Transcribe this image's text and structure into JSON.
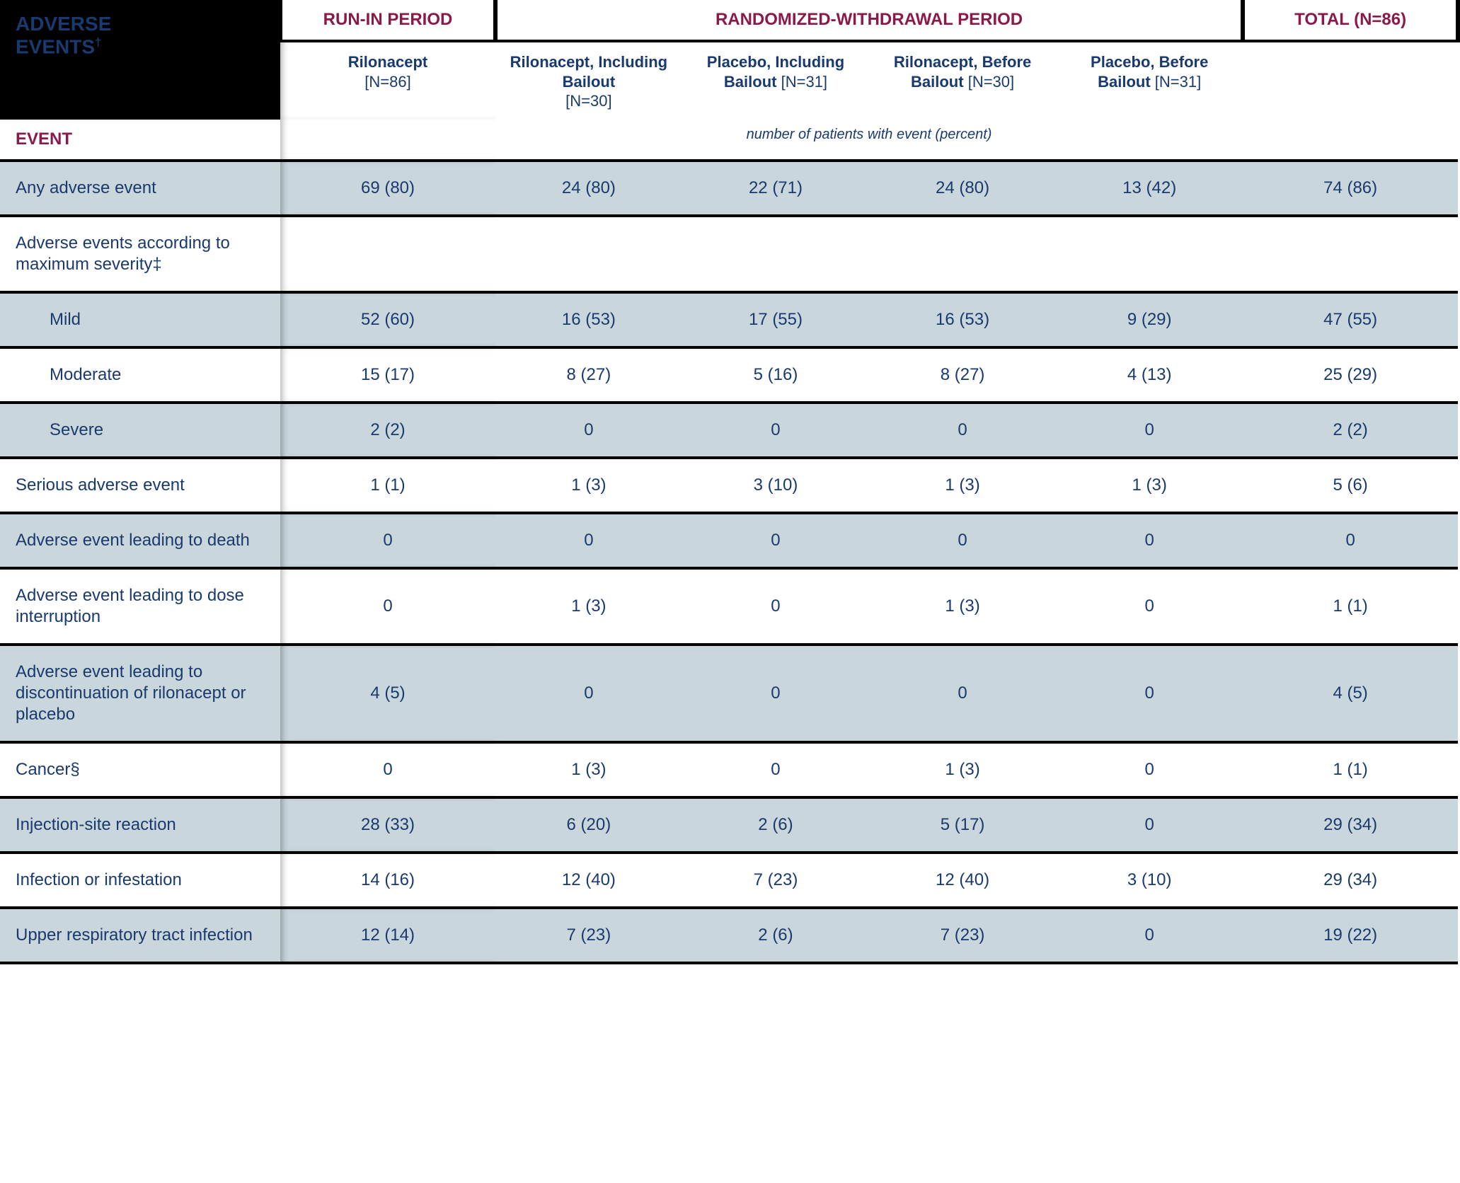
{
  "colors": {
    "text_primary": "#1a3a6e",
    "accent": "#8a1a4a",
    "row_alt_bg": "#c9d6dc",
    "row_plain_bg": "#ffffff",
    "header_black": "#000000",
    "header_white": "#ffffff",
    "rule": "#000000"
  },
  "typography": {
    "title_fontsize": 28,
    "period_fontsize": 24,
    "subheader_fontsize": 22,
    "body_fontsize": 24,
    "caption_fontsize": 20
  },
  "header": {
    "title_line1": "ADVERSE",
    "title_line2": "EVENTS",
    "title_sup": "†",
    "period_runin": "RUN-IN PERIOD",
    "period_rw": "RANDOMIZED-WITHDRAWAL PERIOD",
    "period_total": "TOTAL (N=86)",
    "sub": [
      {
        "b": "Rilonacept",
        "n": "[N=86]"
      },
      {
        "b": "Rilonacept, Including Bailout",
        "n": "[N=30]"
      },
      {
        "b": "Placebo, Including Bailout",
        "n": "[N=31]"
      },
      {
        "b": "Rilonacept, Before Bailout",
        "n": "[N=30]"
      },
      {
        "b": "Placebo, Before Bailout",
        "n": "[N=31]"
      }
    ],
    "caption": "number of patients with event (percent)",
    "event_label": "EVENT"
  },
  "rows": [
    {
      "label": "Any adverse event",
      "indent": false,
      "alt": true,
      "vals": [
        "69 (80)",
        "24 (80)",
        "22 (71)",
        "24 (80)",
        "13 (42)",
        "74 (86)"
      ]
    },
    {
      "label": "Adverse events according to maximum severity‡",
      "indent": false,
      "alt": false,
      "vals": [
        "",
        "",
        "",
        "",
        "",
        ""
      ]
    },
    {
      "label": "Mild",
      "indent": true,
      "alt": true,
      "vals": [
        "52 (60)",
        "16 (53)",
        "17 (55)",
        "16 (53)",
        "9 (29)",
        "47 (55)"
      ]
    },
    {
      "label": "Moderate",
      "indent": true,
      "alt": false,
      "vals": [
        "15 (17)",
        "8 (27)",
        "5 (16)",
        "8 (27)",
        "4 (13)",
        "25 (29)"
      ]
    },
    {
      "label": "Severe",
      "indent": true,
      "alt": true,
      "vals": [
        "2 (2)",
        "0",
        "0",
        "0",
        "0",
        "2 (2)"
      ]
    },
    {
      "label": "Serious adverse event",
      "indent": false,
      "alt": false,
      "vals": [
        "1 (1)",
        "1 (3)",
        "3 (10)",
        "1 (3)",
        "1 (3)",
        "5 (6)"
      ]
    },
    {
      "label": "Adverse event leading to death",
      "indent": false,
      "alt": true,
      "vals": [
        "0",
        "0",
        "0",
        "0",
        "0",
        "0"
      ]
    },
    {
      "label": "Adverse event leading to dose interruption",
      "indent": false,
      "alt": false,
      "vals": [
        "0",
        "1 (3)",
        "0",
        "1 (3)",
        "0",
        "1 (1)"
      ]
    },
    {
      "label": "Adverse event leading to discontinuation of rilonacept or placebo",
      "indent": false,
      "alt": true,
      "vals": [
        "4 (5)",
        "0",
        "0",
        "0",
        "0",
        "4 (5)"
      ]
    },
    {
      "label": "Cancer§",
      "indent": false,
      "alt": false,
      "vals": [
        "0",
        "1 (3)",
        "0",
        "1 (3)",
        "0",
        "1 (1)"
      ]
    },
    {
      "label": "Injection-site reaction",
      "indent": false,
      "alt": true,
      "vals": [
        "28 (33)",
        "6 (20)",
        "2 (6)",
        "5 (17)",
        "0",
        "29 (34)"
      ]
    },
    {
      "label": "Infection or infestation",
      "indent": false,
      "alt": false,
      "vals": [
        "14 (16)",
        "12 (40)",
        "7 (23)",
        "12 (40)",
        "3 (10)",
        "29 (34)"
      ]
    },
    {
      "label": "Upper respiratory tract infection",
      "indent": false,
      "alt": true,
      "vals": [
        "12 (14)",
        "7 (23)",
        "2 (6)",
        "7 (23)",
        "0",
        "19 (22)"
      ]
    }
  ]
}
